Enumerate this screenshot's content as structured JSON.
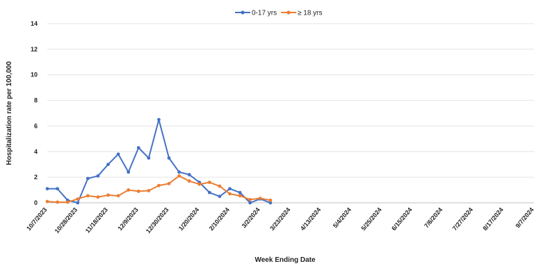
{
  "chart_data": {
    "type": "line",
    "title": "",
    "xlabel": "Week Ending Date",
    "ylabel": "Hospitalization rate per 100,000",
    "ylim": [
      0,
      14
    ],
    "yticks": [
      0,
      2,
      4,
      6,
      8,
      10,
      12,
      14
    ],
    "grid": true,
    "legend": "top",
    "x_tick_labels": [
      "10/7/2023",
      "10/28/2023",
      "11/18/2023",
      "12/9/2023",
      "12/30/2023",
      "1/20/2024",
      "2/10/2024",
      "3/2/2024",
      "3/23/2024",
      "4/13/2024",
      "5/4/2024",
      "5/25/2024",
      "6/15/2024",
      "7/6/2024",
      "7/27/2024",
      "8/17/2024",
      "9/7/2024"
    ],
    "x_start": "10/7/2023",
    "x_end": "9/7/2024",
    "series": [
      {
        "name": "0-17 yrs",
        "color": "#4472C4",
        "x": [
          "10/7/2023",
          "10/14/2023",
          "10/21/2023",
          "10/28/2023",
          "11/4/2023",
          "11/11/2023",
          "11/18/2023",
          "11/25/2023",
          "12/2/2023",
          "12/9/2023",
          "12/16/2023",
          "12/23/2023",
          "12/30/2023",
          "1/6/2024",
          "1/13/2024",
          "1/20/2024",
          "1/27/2024",
          "2/3/2024",
          "2/10/2024",
          "2/17/2024",
          "2/24/2024",
          "3/2/2024",
          "3/9/2024",
          "3/16/2024"
        ],
        "values": [
          1.1,
          1.1,
          0.2,
          0.0,
          1.9,
          2.1,
          3.0,
          3.8,
          2.4,
          4.3,
          3.5,
          6.5,
          3.5,
          2.4,
          2.2,
          1.6,
          0.8,
          0.5,
          1.1,
          0.8,
          0.0,
          0.3,
          0.0,
          null
        ]
      },
      {
        "name": "≥ 18 yrs",
        "color": "#ED7D31",
        "x": [
          "10/7/2023",
          "10/14/2023",
          "10/21/2023",
          "10/28/2023",
          "11/4/2023",
          "11/11/2023",
          "11/18/2023",
          "11/25/2023",
          "12/2/2023",
          "12/9/2023",
          "12/16/2023",
          "12/23/2023",
          "12/30/2023",
          "1/6/2024",
          "1/13/2024",
          "1/20/2024",
          "1/27/2024",
          "2/3/2024",
          "2/10/2024",
          "2/17/2024",
          "2/24/2024",
          "3/2/2024",
          "3/9/2024",
          "3/16/2024"
        ],
        "values": [
          0.1,
          0.05,
          0.05,
          0.3,
          0.55,
          0.45,
          0.6,
          0.55,
          1.0,
          0.9,
          0.95,
          1.35,
          1.5,
          2.1,
          1.7,
          1.45,
          1.6,
          1.3,
          0.7,
          0.55,
          0.25,
          0.35,
          0.2,
          null
        ]
      }
    ]
  }
}
